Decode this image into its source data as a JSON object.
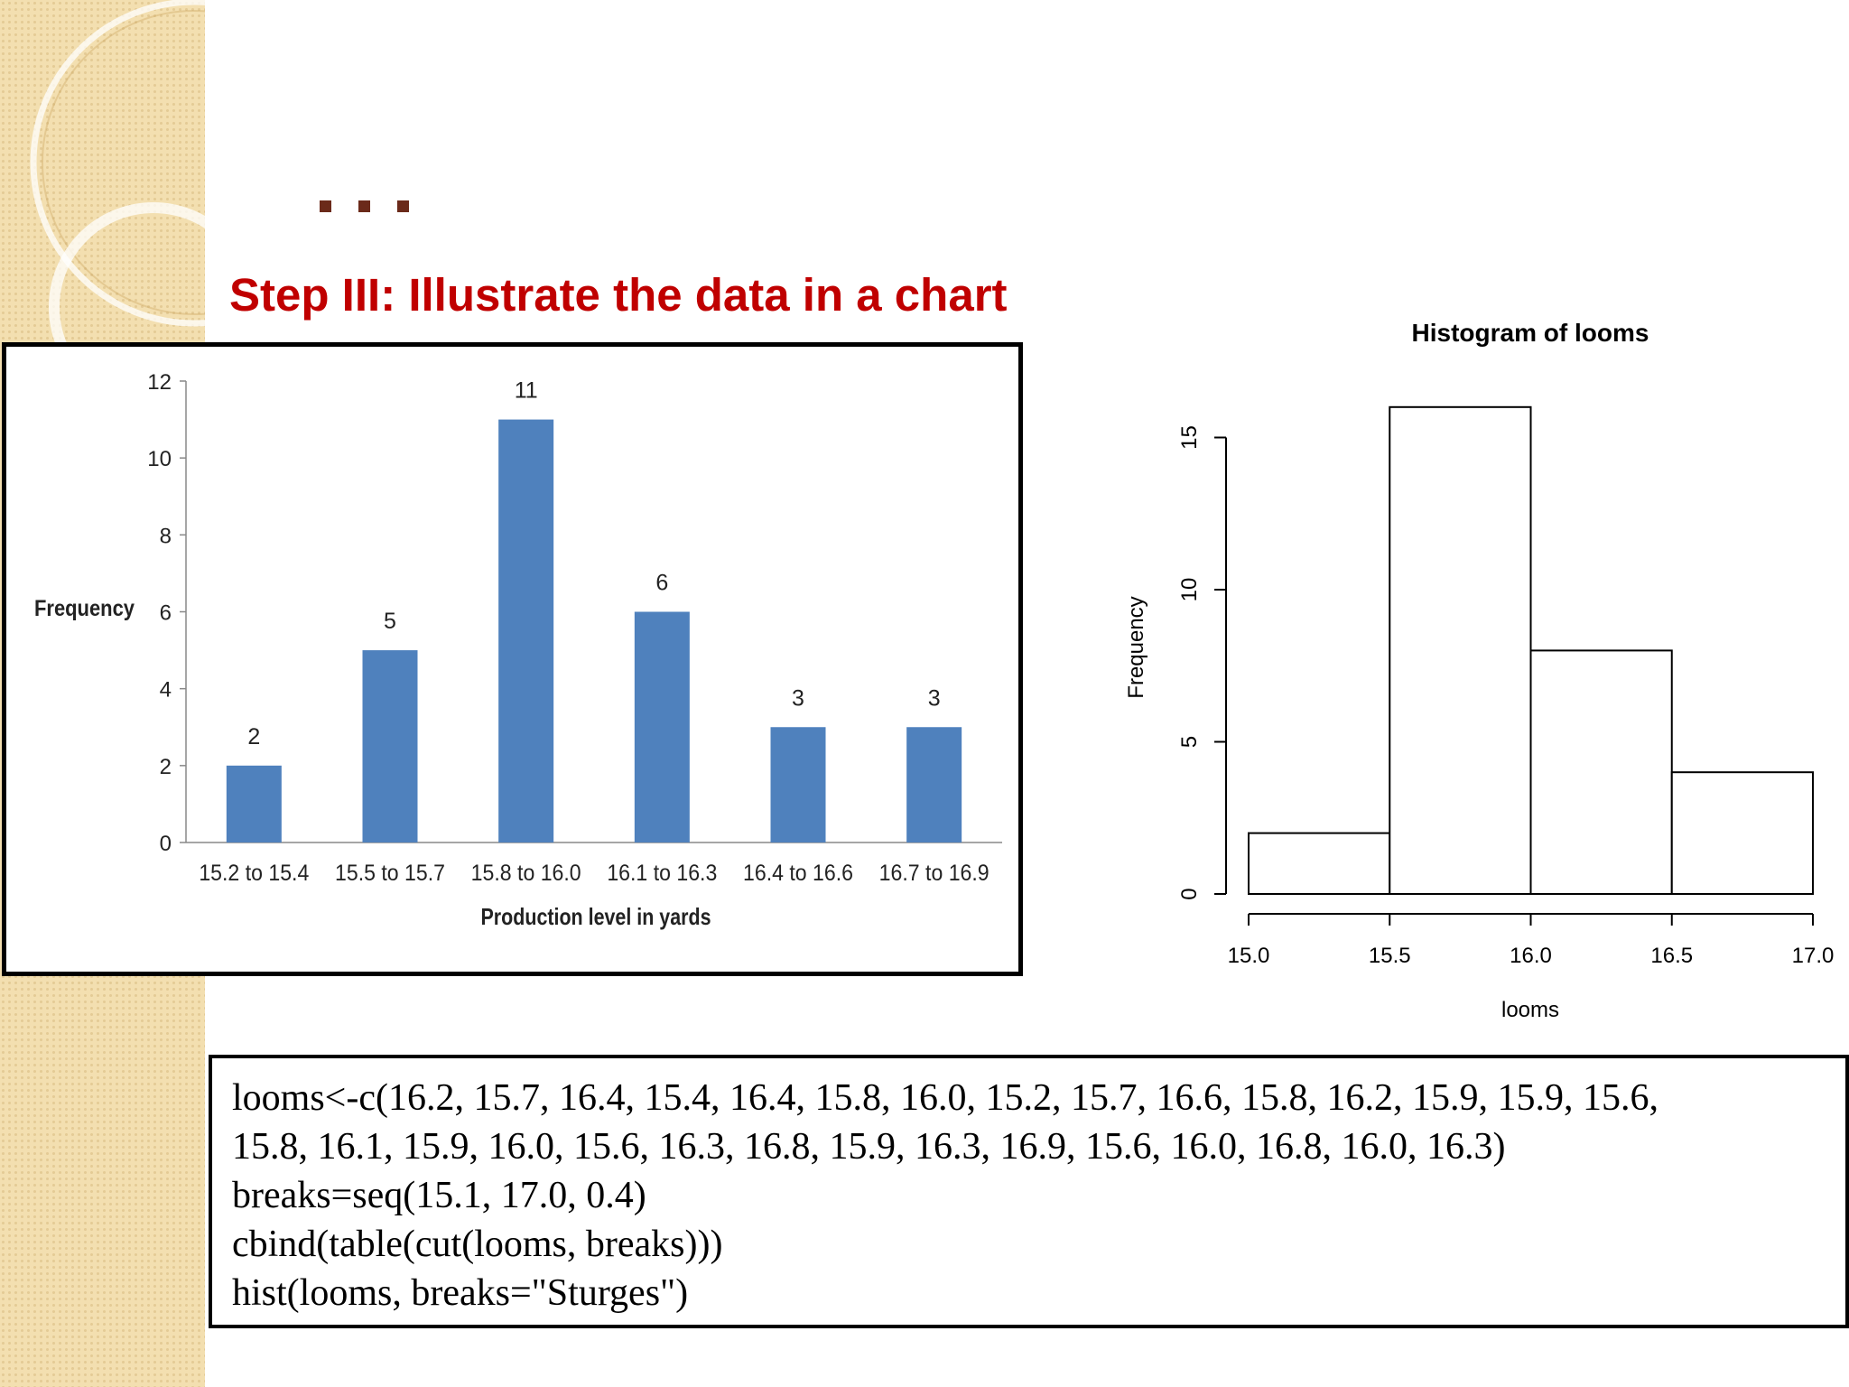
{
  "slide": {
    "title": "Step III: Illustrate the data in a chart"
  },
  "chart_data": [
    {
      "type": "bar",
      "categories": [
        "15.2 to 15.4",
        "15.5 to 15.7",
        "15.8 to 16.0",
        "16.1 to 16.3",
        "16.4 to 16.6",
        "16.7 to 16.9"
      ],
      "values": [
        2,
        5,
        11,
        6,
        3,
        3
      ],
      "data_labels": [
        "2",
        "5",
        "11",
        "6",
        "3",
        "3"
      ],
      "title": "",
      "xlabel": "Production level in yards",
      "ylabel": "Frequency",
      "ylim": [
        0,
        12
      ],
      "yticks": [
        "0",
        "2",
        "4",
        "6",
        "8",
        "10",
        "12"
      ],
      "bar_color": "#4f81bd",
      "grid": false,
      "legend": "none"
    },
    {
      "type": "bar",
      "title": "Histogram of looms",
      "xlabel": "looms",
      "ylabel": "Frequency",
      "bins": [
        [
          15.0,
          15.5
        ],
        [
          15.5,
          16.0
        ],
        [
          16.0,
          16.5
        ],
        [
          16.5,
          17.0
        ]
      ],
      "values": [
        2,
        16,
        8,
        4
      ],
      "xlim": [
        15.0,
        17.0
      ],
      "ylim": [
        0,
        16
      ],
      "xticks": [
        "15.0",
        "15.5",
        "16.0",
        "16.5",
        "17.0"
      ],
      "yticks": [
        "0",
        "5",
        "10",
        "15"
      ],
      "bar_color": "#ffffff",
      "grid": false,
      "legend": "none"
    }
  ],
  "code": {
    "lines": [
      "looms<-c(16.2, 15.7, 16.4, 15.4, 16.4, 15.8, 16.0, 15.2, 15.7, 16.6, 15.8, 16.2, 15.9, 15.9, 15.6,",
      "15.8, 16.1, 15.9, 16.0, 15.6, 16.3, 16.8, 15.9, 16.3, 16.9, 15.6, 16.0, 16.8, 16.0, 16.3)",
      "breaks=seq(15.1, 17.0, 0.4)",
      "cbind(table(cut(looms, breaks)))",
      "hist(looms, breaks=\"Sturges\")"
    ]
  }
}
